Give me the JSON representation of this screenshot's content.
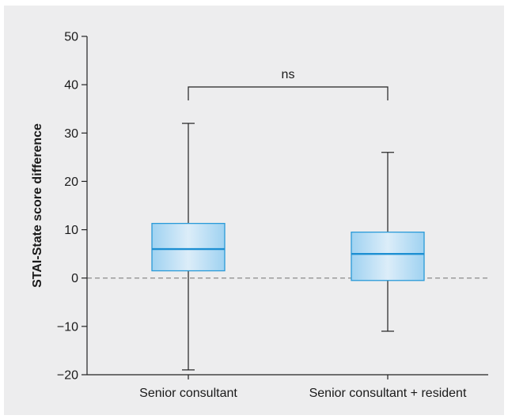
{
  "chart_data": {
    "type": "box",
    "categories": [
      "Senior consultant",
      "Senior consultant + resident"
    ],
    "boxes": [
      {
        "category": "Senior consultant",
        "min": -19,
        "q1": 1.5,
        "median": 6,
        "q3": 11.3,
        "max": 32
      },
      {
        "category": "Senior consultant + resident",
        "min": -11,
        "q1": -0.5,
        "median": 5,
        "q3": 9.5,
        "max": 26
      }
    ],
    "ylabel": "STAI-State score difference",
    "xlabel": "",
    "ylim": [
      -20,
      50
    ],
    "yticks": [
      50,
      40,
      30,
      20,
      10,
      0,
      -10,
      -20
    ],
    "ytick_labels": [
      "50",
      "40",
      "30",
      "20",
      "10",
      "0",
      "−10",
      "−20"
    ],
    "reference_line": {
      "y": 0,
      "style": "dashed"
    },
    "significance": {
      "label": "ns",
      "between": [
        0,
        1
      ]
    },
    "grid": false,
    "legend": "none",
    "colors": {
      "box_light": "#d8ecf9",
      "box_dark": "#9fd2f1",
      "box_edge": "#2a9ad8",
      "median": "#1d8fd2",
      "background": "#ededee",
      "axis": "#222222",
      "reference": "#8a8a8a"
    }
  }
}
